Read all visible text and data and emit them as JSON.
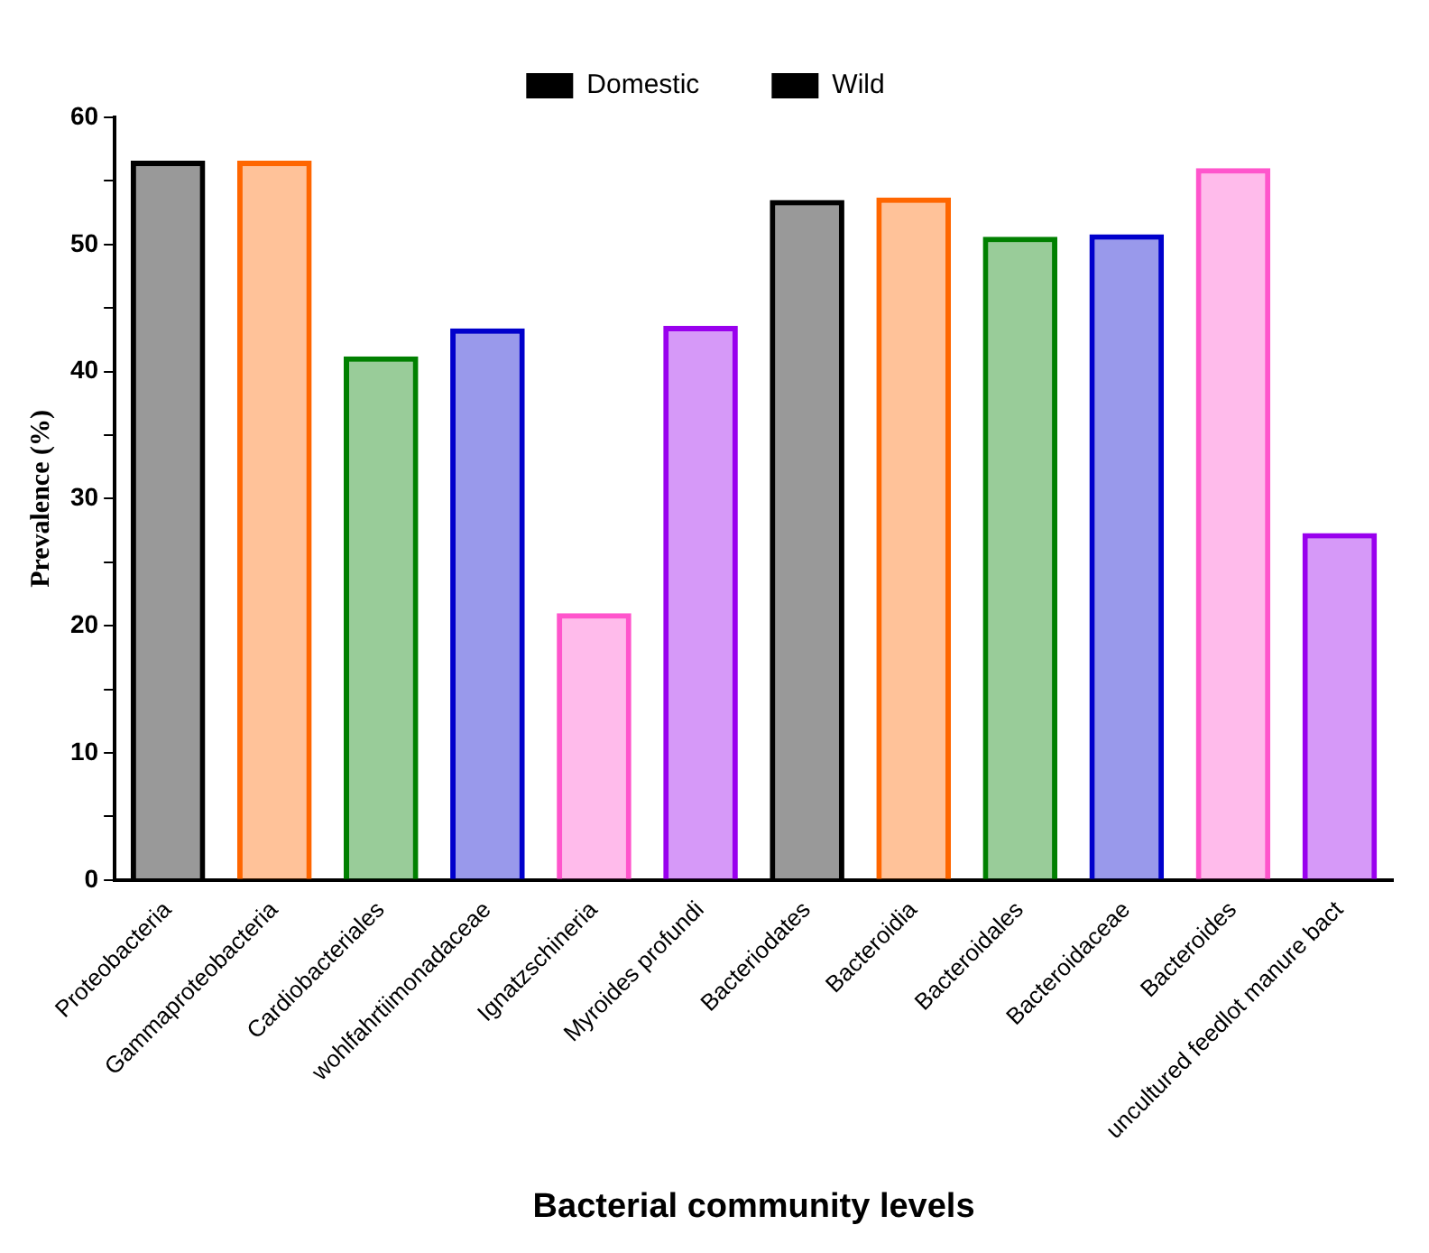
{
  "chart_data": {
    "type": "bar",
    "xlabel": "Bacterial community levels",
    "ylabel": "Prevalence (%)",
    "categories": [
      "Proteobacteria",
      "Gammaproteobacteria",
      "Cardiobacteriales",
      "wohlfahrtiimonadaceae",
      "Ignatzschineria",
      "Myroides profundi",
      "Bacteriodates",
      "Bacteroidia",
      "Bacteroidales",
      "Bacteroidaceae",
      "Bacteroides",
      "uncultured feedlot manure bact"
    ],
    "series": [
      {
        "name": "Domestic",
        "color": "#000000",
        "colors": [
          "#000000",
          "#ff6600",
          "#008000",
          "#0000cc",
          "#ff55cc",
          "#9900ee",
          null,
          null,
          null,
          null,
          null,
          null
        ],
        "values": [
          56.6,
          56.6,
          41.2,
          43.4,
          21.0,
          43.6,
          null,
          null,
          null,
          null,
          null,
          null
        ]
      },
      {
        "name": "Wild",
        "color": "#000000",
        "colors": [
          null,
          null,
          null,
          null,
          null,
          null,
          "#000000",
          "#ff6600",
          "#008000",
          "#0000cc",
          "#ff55cc",
          "#9900ee"
        ],
        "values": [
          null,
          null,
          null,
          null,
          null,
          null,
          53.5,
          53.7,
          50.6,
          50.8,
          56.0,
          27.3
        ]
      }
    ],
    "ylim": [
      0,
      60
    ],
    "yticks": [
      0,
      {
        "value": 5,
        "label": null
      },
      10,
      {
        "value": 15,
        "label": null
      },
      20,
      {
        "value": 25,
        "label": null
      },
      30,
      {
        "value": 35,
        "label": null
      },
      40,
      {
        "value": 45,
        "label": null
      },
      50,
      {
        "value": 55,
        "label": null
      },
      60
    ],
    "grid": false,
    "legend": "top"
  }
}
